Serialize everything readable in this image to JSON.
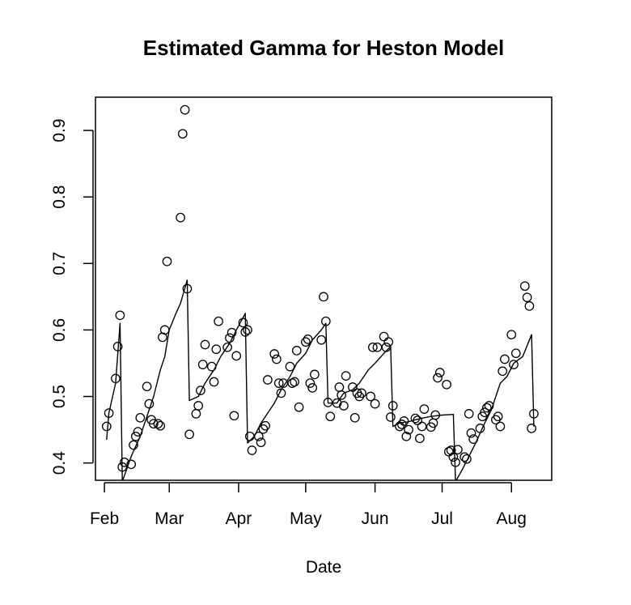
{
  "chart_data": {
    "type": "scatter",
    "title": "Estimated Gamma for Heston Model",
    "xlabel": "Date",
    "ylabel": "",
    "x_ticks": [
      "Feb",
      "Mar",
      "Apr",
      "May",
      "Jun",
      "Jul",
      "Aug"
    ],
    "x_tick_dates": [
      "2016-02-01",
      "2016-03-01",
      "2016-04-01",
      "2016-05-01",
      "2016-06-01",
      "2016-07-01",
      "2016-08-01"
    ],
    "xlim": [
      "2016-01-28",
      "2016-08-19"
    ],
    "y_ticks": [
      0.4,
      0.5,
      0.6,
      0.7,
      0.8,
      0.9
    ],
    "ylim": [
      0.374,
      0.95
    ],
    "grid": false,
    "legend": "none",
    "colors": {
      "points": "#000000",
      "line": "#000000",
      "axes": "#000000"
    },
    "series": [
      {
        "kind": "points",
        "points": [
          [
            "2016-02-02",
            0.455
          ],
          [
            "2016-02-03",
            0.475
          ],
          [
            "2016-02-06",
            0.527
          ],
          [
            "2016-02-07",
            0.575
          ],
          [
            "2016-02-08",
            0.622
          ],
          [
            "2016-02-09",
            0.394
          ],
          [
            "2016-02-10",
            0.401
          ],
          [
            "2016-02-13",
            0.398
          ],
          [
            "2016-02-14",
            0.427
          ],
          [
            "2016-02-15",
            0.44
          ],
          [
            "2016-02-16",
            0.447
          ],
          [
            "2016-02-17",
            0.468
          ],
          [
            "2016-02-20",
            0.515
          ],
          [
            "2016-02-21",
            0.489
          ],
          [
            "2016-02-22",
            0.465
          ],
          [
            "2016-02-23",
            0.459
          ],
          [
            "2016-02-25",
            0.459
          ],
          [
            "2016-02-26",
            0.456
          ],
          [
            "2016-02-27",
            0.589
          ],
          [
            "2016-02-28",
            0.6
          ],
          [
            "2016-02-29",
            0.703
          ],
          [
            "2016-03-06",
            0.769
          ],
          [
            "2016-03-07",
            0.895
          ],
          [
            "2016-03-08",
            0.931
          ],
          [
            "2016-03-09",
            0.662
          ],
          [
            "2016-03-10",
            0.443
          ],
          [
            "2016-03-13",
            0.474
          ],
          [
            "2016-03-14",
            0.486
          ],
          [
            "2016-03-15",
            0.509
          ],
          [
            "2016-03-16",
            0.548
          ],
          [
            "2016-03-17",
            0.578
          ],
          [
            "2016-03-20",
            0.545
          ],
          [
            "2016-03-21",
            0.522
          ],
          [
            "2016-03-22",
            0.571
          ],
          [
            "2016-03-23",
            0.613
          ],
          [
            "2016-03-27",
            0.574
          ],
          [
            "2016-03-28",
            0.588
          ],
          [
            "2016-03-29",
            0.596
          ],
          [
            "2016-03-30",
            0.471
          ],
          [
            "2016-03-31",
            0.561
          ],
          [
            "2016-04-03",
            0.611
          ],
          [
            "2016-04-04",
            0.597
          ],
          [
            "2016-04-05",
            0.6
          ],
          [
            "2016-04-06",
            0.44
          ],
          [
            "2016-04-07",
            0.419
          ],
          [
            "2016-04-10",
            0.44
          ],
          [
            "2016-04-11",
            0.431
          ],
          [
            "2016-04-12",
            0.451
          ],
          [
            "2016-04-13",
            0.456
          ],
          [
            "2016-04-14",
            0.525
          ],
          [
            "2016-04-17",
            0.564
          ],
          [
            "2016-04-18",
            0.556
          ],
          [
            "2016-04-19",
            0.52
          ],
          [
            "2016-04-20",
            0.505
          ],
          [
            "2016-04-21",
            0.52
          ],
          [
            "2016-04-24",
            0.545
          ],
          [
            "2016-04-25",
            0.52
          ],
          [
            "2016-04-26",
            0.522
          ],
          [
            "2016-04-27",
            0.569
          ],
          [
            "2016-04-28",
            0.484
          ],
          [
            "2016-05-01",
            0.582
          ],
          [
            "2016-05-02",
            0.586
          ],
          [
            "2016-05-03",
            0.52
          ],
          [
            "2016-05-04",
            0.513
          ],
          [
            "2016-05-05",
            0.533
          ],
          [
            "2016-05-08",
            0.585
          ],
          [
            "2016-05-09",
            0.65
          ],
          [
            "2016-05-10",
            0.613
          ],
          [
            "2016-05-11",
            0.491
          ],
          [
            "2016-05-12",
            0.47
          ],
          [
            "2016-05-15",
            0.49
          ],
          [
            "2016-05-16",
            0.514
          ],
          [
            "2016-05-17",
            0.502
          ],
          [
            "2016-05-18",
            0.486
          ],
          [
            "2016-05-19",
            0.531
          ],
          [
            "2016-05-22",
            0.514
          ],
          [
            "2016-05-23",
            0.468
          ],
          [
            "2016-05-24",
            0.505
          ],
          [
            "2016-05-25",
            0.5
          ],
          [
            "2016-05-26",
            0.505
          ],
          [
            "2016-05-30",
            0.5
          ],
          [
            "2016-05-31",
            0.574
          ],
          [
            "2016-06-01",
            0.489
          ],
          [
            "2016-06-02",
            0.574
          ],
          [
            "2016-06-05",
            0.59
          ],
          [
            "2016-06-06",
            0.574
          ],
          [
            "2016-06-07",
            0.582
          ],
          [
            "2016-06-08",
            0.469
          ],
          [
            "2016-06-09",
            0.486
          ],
          [
            "2016-06-12",
            0.455
          ],
          [
            "2016-06-13",
            0.458
          ],
          [
            "2016-06-14",
            0.463
          ],
          [
            "2016-06-15",
            0.44
          ],
          [
            "2016-06-16",
            0.45
          ],
          [
            "2016-06-19",
            0.467
          ],
          [
            "2016-06-20",
            0.464
          ],
          [
            "2016-06-21",
            0.437
          ],
          [
            "2016-06-22",
            0.455
          ],
          [
            "2016-06-23",
            0.481
          ],
          [
            "2016-06-26",
            0.454
          ],
          [
            "2016-06-27",
            0.46
          ],
          [
            "2016-06-28",
            0.472
          ],
          [
            "2016-06-29",
            0.528
          ],
          [
            "2016-06-30",
            0.536
          ],
          [
            "2016-07-03",
            0.518
          ],
          [
            "2016-07-04",
            0.417
          ],
          [
            "2016-07-05",
            0.419
          ],
          [
            "2016-07-06",
            0.409
          ],
          [
            "2016-07-07",
            0.401
          ],
          [
            "2016-07-08",
            0.42
          ],
          [
            "2016-07-11",
            0.409
          ],
          [
            "2016-07-12",
            0.406
          ],
          [
            "2016-07-13",
            0.474
          ],
          [
            "2016-07-14",
            0.445
          ],
          [
            "2016-07-15",
            0.436
          ],
          [
            "2016-07-18",
            0.452
          ],
          [
            "2016-07-19",
            0.47
          ],
          [
            "2016-07-20",
            0.476
          ],
          [
            "2016-07-21",
            0.483
          ],
          [
            "2016-07-22",
            0.486
          ],
          [
            "2016-07-25",
            0.465
          ],
          [
            "2016-07-26",
            0.47
          ],
          [
            "2016-07-27",
            0.455
          ],
          [
            "2016-07-28",
            0.538
          ],
          [
            "2016-07-29",
            0.556
          ],
          [
            "2016-08-01",
            0.593
          ],
          [
            "2016-08-02",
            0.548
          ],
          [
            "2016-08-03",
            0.565
          ],
          [
            "2016-08-07",
            0.666
          ],
          [
            "2016-08-08",
            0.649
          ],
          [
            "2016-08-09",
            0.636
          ],
          [
            "2016-08-10",
            0.452
          ],
          [
            "2016-08-11",
            0.474
          ]
        ]
      },
      {
        "kind": "line",
        "points": [
          [
            "2016-02-02",
            0.435
          ],
          [
            "2016-02-03",
            0.475
          ],
          [
            "2016-02-06",
            0.52
          ],
          [
            "2016-02-08",
            0.61
          ],
          [
            "2016-02-09",
            0.372
          ],
          [
            "2016-02-13",
            0.41
          ],
          [
            "2016-02-17",
            0.44
          ],
          [
            "2016-02-20",
            0.47
          ],
          [
            "2016-02-23",
            0.5
          ],
          [
            "2016-02-26",
            0.54
          ],
          [
            "2016-02-28",
            0.56
          ],
          [
            "2016-03-01",
            0.6
          ],
          [
            "2016-03-04",
            0.625
          ],
          [
            "2016-03-06",
            0.64
          ],
          [
            "2016-03-09",
            0.675
          ],
          [
            "2016-03-10",
            0.494
          ],
          [
            "2016-03-14",
            0.5
          ],
          [
            "2016-03-17",
            0.52
          ],
          [
            "2016-03-21",
            0.54
          ],
          [
            "2016-03-24",
            0.56
          ],
          [
            "2016-03-28",
            0.58
          ],
          [
            "2016-03-31",
            0.6
          ],
          [
            "2016-04-04",
            0.625
          ],
          [
            "2016-04-05",
            0.43
          ],
          [
            "2016-04-08",
            0.44
          ],
          [
            "2016-04-11",
            0.46
          ],
          [
            "2016-04-14",
            0.475
          ],
          [
            "2016-04-17",
            0.49
          ],
          [
            "2016-04-20",
            0.51
          ],
          [
            "2016-04-24",
            0.53
          ],
          [
            "2016-04-27",
            0.55
          ],
          [
            "2016-05-01",
            0.565
          ],
          [
            "2016-05-04",
            0.585
          ],
          [
            "2016-05-08",
            0.6
          ],
          [
            "2016-05-10",
            0.61
          ],
          [
            "2016-05-11",
            0.49
          ],
          [
            "2016-05-15",
            0.49
          ],
          [
            "2016-05-18",
            0.505
          ],
          [
            "2016-05-22",
            0.51
          ],
          [
            "2016-05-25",
            0.52
          ],
          [
            "2016-05-29",
            0.54
          ],
          [
            "2016-06-01",
            0.55
          ],
          [
            "2016-06-05",
            0.565
          ],
          [
            "2016-06-08",
            0.575
          ],
          [
            "2016-06-09",
            0.455
          ],
          [
            "2016-06-12",
            0.46
          ],
          [
            "2016-06-16",
            0.462
          ],
          [
            "2016-06-19",
            0.465
          ],
          [
            "2016-06-23",
            0.468
          ],
          [
            "2016-06-26",
            0.47
          ],
          [
            "2016-07-01",
            0.472
          ],
          [
            "2016-07-06",
            0.473
          ],
          [
            "2016-07-07",
            0.372
          ],
          [
            "2016-07-10",
            0.39
          ],
          [
            "2016-07-13",
            0.41
          ],
          [
            "2016-07-16",
            0.43
          ],
          [
            "2016-07-20",
            0.46
          ],
          [
            "2016-07-23",
            0.48
          ],
          [
            "2016-07-27",
            0.52
          ],
          [
            "2016-07-30",
            0.53
          ],
          [
            "2016-08-02",
            0.55
          ],
          [
            "2016-08-06",
            0.56
          ],
          [
            "2016-08-10",
            0.593
          ],
          [
            "2016-08-11",
            0.455
          ]
        ]
      }
    ]
  }
}
